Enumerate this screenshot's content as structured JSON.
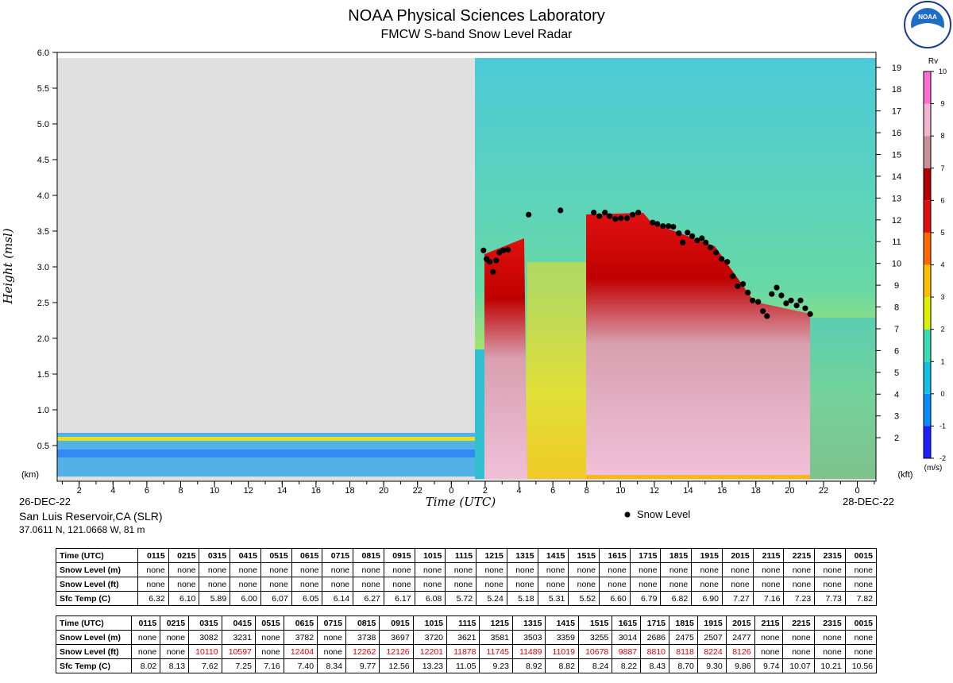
{
  "chart_data": {
    "type": "scatter",
    "title": "NOAA Physical Sciences Laboratory",
    "subtitle": "FMCW S-band Snow Level Radar",
    "logo_text": "NOAA",
    "ylabel": "Height (msl)",
    "ylabel_unit": "(km)",
    "xlabel": "Time (UTC)",
    "y2label_unit": "(kft)",
    "start_date": "26-DEC-22",
    "end_date": "28-DEC-22",
    "station": "San Luis Reservoir,CA (SLR)",
    "location": "37.0611 N, 121.0668 W, 81 m",
    "xlim": [
      0.7,
      49.1
    ],
    "xticks": [
      2,
      4,
      6,
      8,
      10,
      12,
      14,
      16,
      18,
      20,
      22,
      {
        "value": 24,
        "label": "0"
      },
      {
        "value": 26,
        "label": "2"
      },
      {
        "value": 28,
        "label": "4"
      },
      {
        "value": 30,
        "label": "6"
      },
      {
        "value": 32,
        "label": "8"
      },
      {
        "value": 34,
        "label": "10"
      },
      {
        "value": 36,
        "label": "12"
      },
      {
        "value": 38,
        "label": "14"
      },
      {
        "value": 40,
        "label": "16"
      },
      {
        "value": 42,
        "label": "18"
      },
      {
        "value": 44,
        "label": "20"
      },
      {
        "value": 46,
        "label": "22"
      },
      {
        "value": 48,
        "label": "0"
      }
    ],
    "ylim": [
      0,
      6
    ],
    "yticks": [
      0.5,
      {
        "value": 1,
        "label": "1.0"
      },
      1.5,
      {
        "value": 2,
        "label": "2.0"
      },
      2.5,
      {
        "value": 3,
        "label": "3.0"
      },
      3.5,
      {
        "value": 4,
        "label": "4.0"
      },
      4.5,
      {
        "value": 5,
        "label": "5.0"
      },
      5.5,
      {
        "value": 6,
        "label": "6.0"
      }
    ],
    "y2lim": [
      0,
      19.685
    ],
    "y2ticks": [
      2,
      3,
      4,
      5,
      6,
      7,
      8,
      9,
      10,
      11,
      12,
      13,
      14,
      15,
      16,
      17,
      18,
      19
    ],
    "colorbar": {
      "label": "Rv",
      "unit_label": "(m/s)",
      "lim": [
        -2,
        10
      ],
      "ticks": [
        -2,
        -1,
        0,
        1,
        2,
        3,
        4,
        5,
        6,
        7,
        8,
        9,
        10
      ],
      "colors": [
        "#1f1fff",
        "#0a8cff",
        "#12c0e6",
        "#38dcb4",
        "#dcf000",
        "#ffc000",
        "#ff6a00",
        "#e01010",
        "#b40000",
        "#c89098",
        "#f2b4d2",
        "#ff6ed2"
      ]
    },
    "legend": "bottom-right",
    "series": [
      {
        "name": "Snow Level",
        "color": "#000000",
        "x": [
          25.9,
          26.08,
          26.27,
          26.46,
          26.65,
          26.84,
          27.07,
          27.35,
          28.57,
          30.45,
          32.42,
          32.75,
          33.08,
          33.36,
          33.69,
          34.02,
          34.39,
          34.72,
          35.05,
          35.9,
          36.18,
          36.51,
          36.84,
          37.12,
          37.45,
          37.68,
          37.96,
          38.24,
          38.53,
          38.81,
          39.04,
          39.32,
          39.65,
          39.98,
          40.31,
          40.64,
          40.92,
          41.24,
          41.53,
          41.81,
          42.14,
          42.42,
          42.66,
          42.94,
          43.23,
          43.51,
          43.79,
          44.08,
          44.41,
          44.64,
          44.92,
          45.21
        ],
        "values": [
          3.23,
          3.11,
          3.07,
          2.93,
          3.09,
          3.2,
          3.23,
          3.24,
          3.73,
          3.79,
          3.76,
          3.71,
          3.76,
          3.71,
          3.67,
          3.68,
          3.68,
          3.73,
          3.76,
          3.62,
          3.6,
          3.57,
          3.57,
          3.56,
          3.47,
          3.34,
          3.48,
          3.43,
          3.37,
          3.4,
          3.34,
          3.27,
          3.2,
          3.11,
          3.07,
          2.87,
          2.73,
          2.76,
          2.64,
          2.53,
          2.51,
          2.38,
          2.31,
          2.62,
          2.71,
          2.6,
          2.49,
          2.53,
          2.46,
          2.53,
          2.42,
          2.34
        ]
      }
    ]
  },
  "tables": [
    {
      "rows": [
        [
          "Time (UTC)",
          "0115",
          "0215",
          "0315",
          "0415",
          "0515",
          "0615",
          "0715",
          "0815",
          "0915",
          "1015",
          "1115",
          "1215",
          "1315",
          "1415",
          "1515",
          "1615",
          "1715",
          "1815",
          "1915",
          "2015",
          "2115",
          "2215",
          "2315",
          "0015"
        ],
        [
          "Snow Level (m)",
          "none",
          "none",
          "none",
          "none",
          "none",
          "none",
          "none",
          "none",
          "none",
          "none",
          "none",
          "none",
          "none",
          "none",
          "none",
          "none",
          "none",
          "none",
          "none",
          "none",
          "none",
          "none",
          "none",
          "none"
        ],
        [
          "Snow Level (ft)",
          "none",
          "none",
          "none",
          "none",
          "none",
          "none",
          "none",
          "none",
          "none",
          "none",
          "none",
          "none",
          "none",
          "none",
          "none",
          "none",
          "none",
          "none",
          "none",
          "none",
          "none",
          "none",
          "none",
          "none"
        ],
        [
          "Sfc Temp (C)",
          "6.32",
          "6.10",
          "5.89",
          "6.00",
          "6.07",
          "6.05",
          "6.14",
          "6.27",
          "6.17",
          "6.08",
          "5.72",
          "5.24",
          "5.18",
          "5.31",
          "5.52",
          "6.60",
          "6.79",
          "6.82",
          "6.90",
          "7.27",
          "7.16",
          "7.23",
          "7.73",
          "7.82"
        ]
      ]
    },
    {
      "highlight": {
        "row": 2,
        "color": "#e00000"
      },
      "rows": [
        [
          "Time (UTC)",
          "0115",
          "0215",
          "0315",
          "0415",
          "0515",
          "0615",
          "0715",
          "0815",
          "0915",
          "1015",
          "1115",
          "1215",
          "1315",
          "1415",
          "1515",
          "1615",
          "1715",
          "1815",
          "1915",
          "2015",
          "2115",
          "2215",
          "2315",
          "0015"
        ],
        [
          "Snow Level (m)",
          "none",
          "none",
          "3082",
          "3231",
          "none",
          "3782",
          "none",
          "3738",
          "3697",
          "3720",
          "3621",
          "3581",
          "3503",
          "3359",
          "3255",
          "3014",
          "2686",
          "2475",
          "2507",
          "2477",
          "none",
          "none",
          "none",
          "none"
        ],
        [
          "Snow Level (ft)",
          "none",
          "none",
          "10110",
          "10597",
          "none",
          "12404",
          "none",
          "12262",
          "12126",
          "12201",
          "11878",
          "11745",
          "11489",
          "11019",
          "10678",
          "9887",
          "8810",
          "8118",
          "8224",
          "8126",
          "none",
          "none",
          "none",
          "none"
        ],
        [
          "Sfc Temp (C)",
          "8.02",
          "8.13",
          "7.62",
          "7.25",
          "7.16",
          "7.40",
          "8.34",
          "9.77",
          "12.56",
          "13.23",
          "11.05",
          "9.23",
          "8.92",
          "8.82",
          "8.24",
          "8.22",
          "8.43",
          "8.70",
          "9.30",
          "9.86",
          "9.74",
          "10.07",
          "10.21",
          "10.56"
        ]
      ]
    }
  ]
}
